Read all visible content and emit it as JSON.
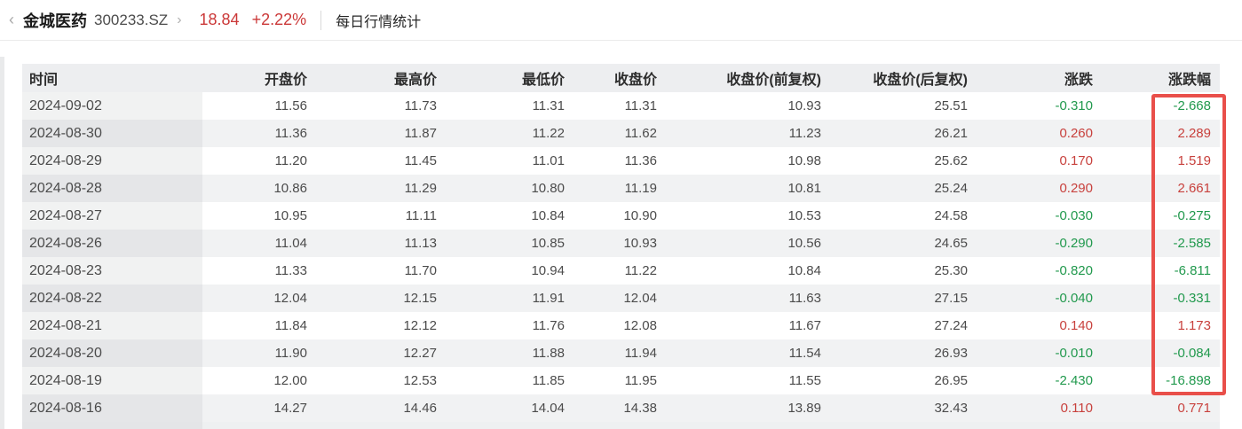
{
  "breadcrumb": {
    "back_chevron": "‹",
    "stock_name": "金城医药",
    "stock_code": "300233.SZ",
    "fwd_chevron": "›",
    "price": "18.84",
    "change_percent": "+2.22%",
    "page_title": "每日行情统计"
  },
  "colors": {
    "up_red": "#c8413d",
    "down_green": "#21994d",
    "topbar_red": "#cb3838",
    "highlight_border": "#e94f4a"
  },
  "table": {
    "columns": [
      "时间",
      "开盘价",
      "最高价",
      "最低价",
      "收盘价",
      "收盘价(前复权)",
      "收盘价(后复权)",
      "涨跌",
      "涨跌幅"
    ],
    "rows": [
      [
        "2024-09-02",
        "11.56",
        "11.73",
        "11.31",
        "11.31",
        "10.93",
        "25.51",
        "-0.310",
        "-2.668"
      ],
      [
        "2024-08-30",
        "11.36",
        "11.87",
        "11.22",
        "11.62",
        "11.23",
        "26.21",
        "0.260",
        "2.289"
      ],
      [
        "2024-08-29",
        "11.20",
        "11.45",
        "11.01",
        "11.36",
        "10.98",
        "25.62",
        "0.170",
        "1.519"
      ],
      [
        "2024-08-28",
        "10.86",
        "11.29",
        "10.80",
        "11.19",
        "10.81",
        "25.24",
        "0.290",
        "2.661"
      ],
      [
        "2024-08-27",
        "10.95",
        "11.11",
        "10.84",
        "10.90",
        "10.53",
        "24.58",
        "-0.030",
        "-0.275"
      ],
      [
        "2024-08-26",
        "11.04",
        "11.13",
        "10.85",
        "10.93",
        "10.56",
        "24.65",
        "-0.290",
        "-2.585"
      ],
      [
        "2024-08-23",
        "11.33",
        "11.70",
        "10.94",
        "11.22",
        "10.84",
        "25.30",
        "-0.820",
        "-6.811"
      ],
      [
        "2024-08-22",
        "12.04",
        "12.15",
        "11.91",
        "12.04",
        "11.63",
        "27.15",
        "-0.040",
        "-0.331"
      ],
      [
        "2024-08-21",
        "11.84",
        "12.12",
        "11.76",
        "12.08",
        "11.67",
        "27.24",
        "0.140",
        "1.173"
      ],
      [
        "2024-08-20",
        "11.90",
        "12.27",
        "11.88",
        "11.94",
        "11.54",
        "26.93",
        "-0.010",
        "-0.084"
      ],
      [
        "2024-08-19",
        "12.00",
        "12.53",
        "11.85",
        "11.95",
        "11.55",
        "26.95",
        "-2.430",
        "-16.898"
      ],
      [
        "2024-08-16",
        "14.27",
        "14.46",
        "14.04",
        "14.38",
        "13.89",
        "32.43",
        "0.110",
        "0.771"
      ]
    ],
    "highlighted_column": "涨跌幅",
    "highlighted_row_range": [
      "2024-09-02",
      "2024-08-19"
    ]
  }
}
